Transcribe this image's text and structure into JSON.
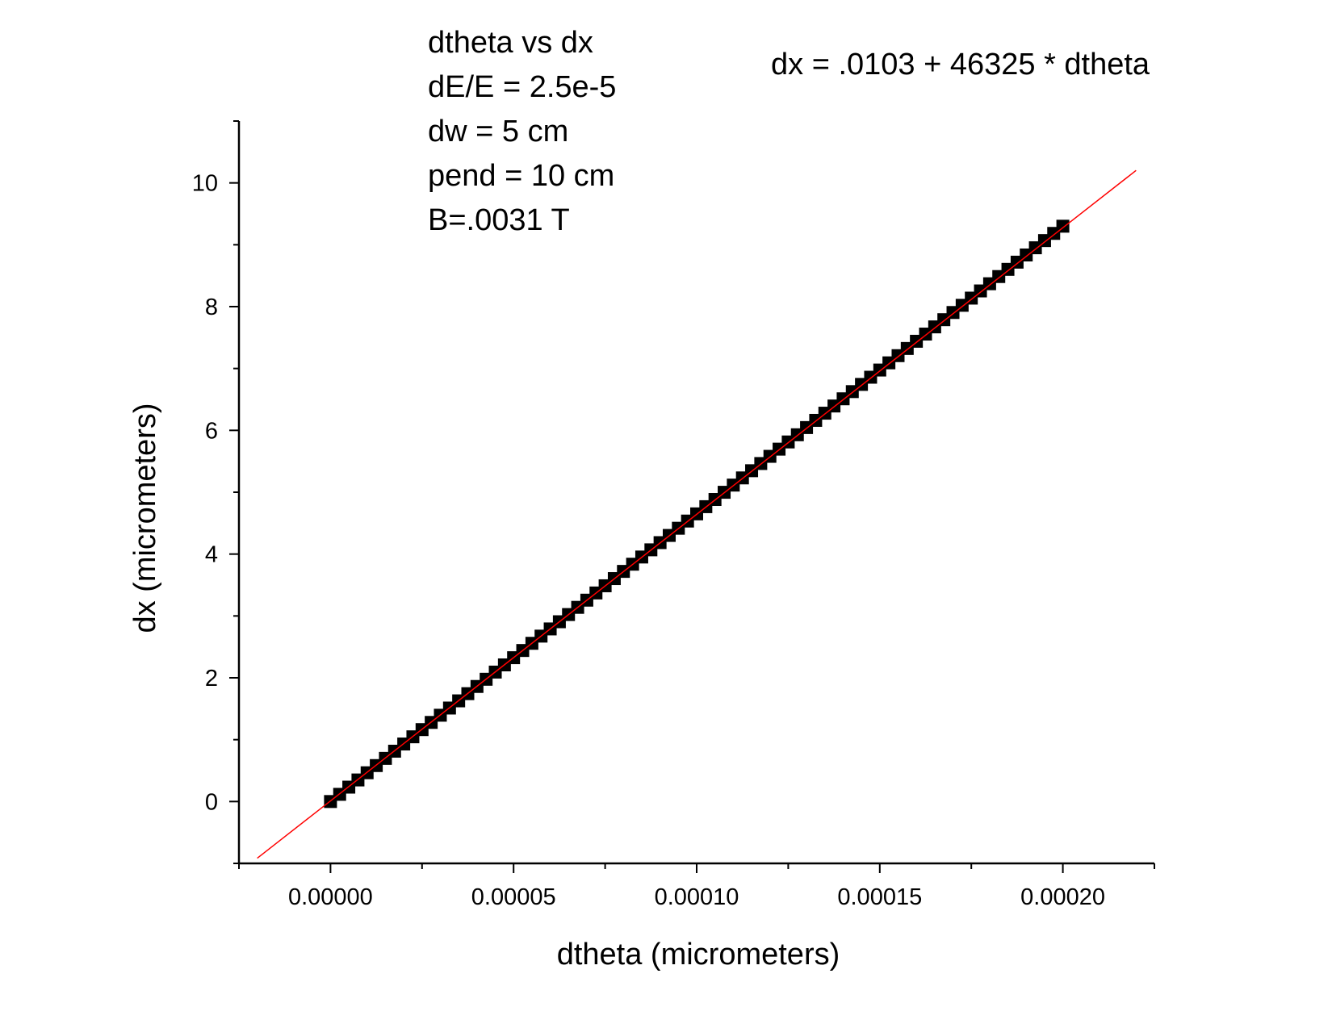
{
  "chart_data": {
    "type": "scatter",
    "title": "",
    "xlabel": "dtheta (micrometers)",
    "ylabel": "dx (micrometers)",
    "xlim": [
      -2.5e-05,
      0.000225
    ],
    "ylim": [
      -1,
      11
    ],
    "x_ticks": [
      "0.00000",
      "0.00005",
      "0.00010",
      "0.00015",
      "0.00020"
    ],
    "y_ticks": [
      "0",
      "2",
      "4",
      "6",
      "8",
      "10"
    ],
    "annotations": [
      "dtheta vs dx",
      "dE/E = 2.5e-5",
      "dw = 5 cm",
      "pend = 10 cm",
      "B=.0031 T"
    ],
    "fit_equation": "dx = .0103 + 46325 * dtheta",
    "fit": {
      "intercept": 0.0103,
      "slope": 46325,
      "x_range": [
        -2e-05,
        0.00022
      ],
      "color": "#ff0000"
    },
    "series": [
      {
        "marker": "square",
        "color": "#000000",
        "x_start": 0.0,
        "x_end": 0.0002,
        "count": 81,
        "y_start": 0.0,
        "y_end": 9.3
      }
    ],
    "grid": false
  }
}
